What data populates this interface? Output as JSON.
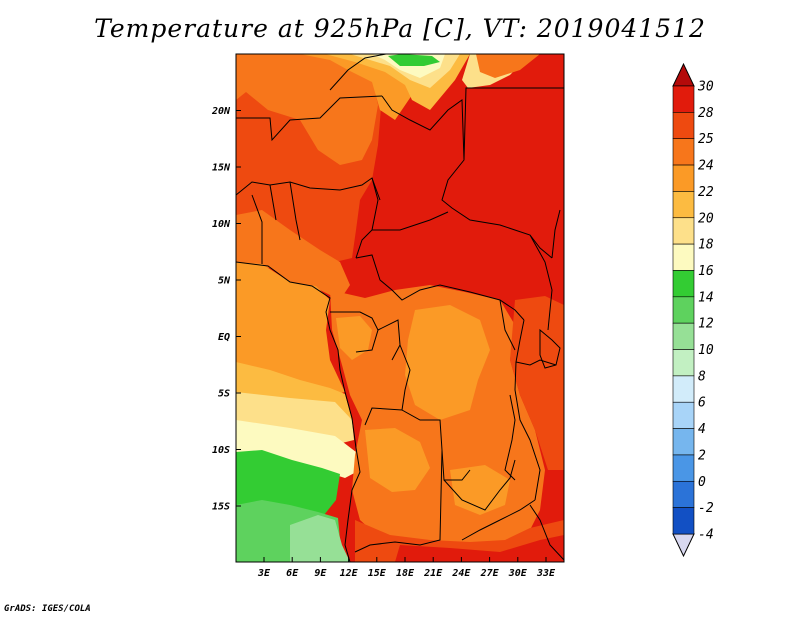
{
  "title": "Temperature at 925hPa [C], VT: 2019041512",
  "credit": "GrADS: IGES/COLA",
  "map": {
    "lat_labels": [
      "20N",
      "15N",
      "10N",
      "5N",
      "EQ",
      "5S",
      "10S",
      "15S"
    ],
    "lon_labels": [
      "3E",
      "6E",
      "9E",
      "12E",
      "15E",
      "18E",
      "21E",
      "24E",
      "27E",
      "30E",
      "33E"
    ]
  },
  "colorbar": {
    "labels": [
      "30",
      "28",
      "25",
      "24",
      "22",
      "20",
      "18",
      "16",
      "14",
      "12",
      "10",
      "8",
      "6",
      "4",
      "2",
      "0",
      "-2",
      "-4"
    ],
    "top_color": "#b40a0a",
    "bottom_color": "#d8d8f0",
    "band_colors": [
      "#e11b0c",
      "#ee4a10",
      "#f7761b",
      "#fb9a26",
      "#fcbb41",
      "#fde08a",
      "#fdfac0",
      "#33cc33",
      "#5ed25e",
      "#96e096",
      "#c2f0c2",
      "#d2ecfa",
      "#a8d4f8",
      "#76b6ee",
      "#4a96e6",
      "#2b73d8",
      "#1250c4",
      "#0c34a8",
      "#0b1d82"
    ]
  },
  "colors": {
    "hot": "#e11b0c",
    "warm": "#ee4a10",
    "orange": "#f7761b",
    "amber": "#fb9a26",
    "yellow": "#fcbb41",
    "pale": "#fde08a",
    "cream": "#fdfac0",
    "green": "#33cc33",
    "lightgreen": "#5ed25e",
    "palegreen": "#96e096"
  }
}
